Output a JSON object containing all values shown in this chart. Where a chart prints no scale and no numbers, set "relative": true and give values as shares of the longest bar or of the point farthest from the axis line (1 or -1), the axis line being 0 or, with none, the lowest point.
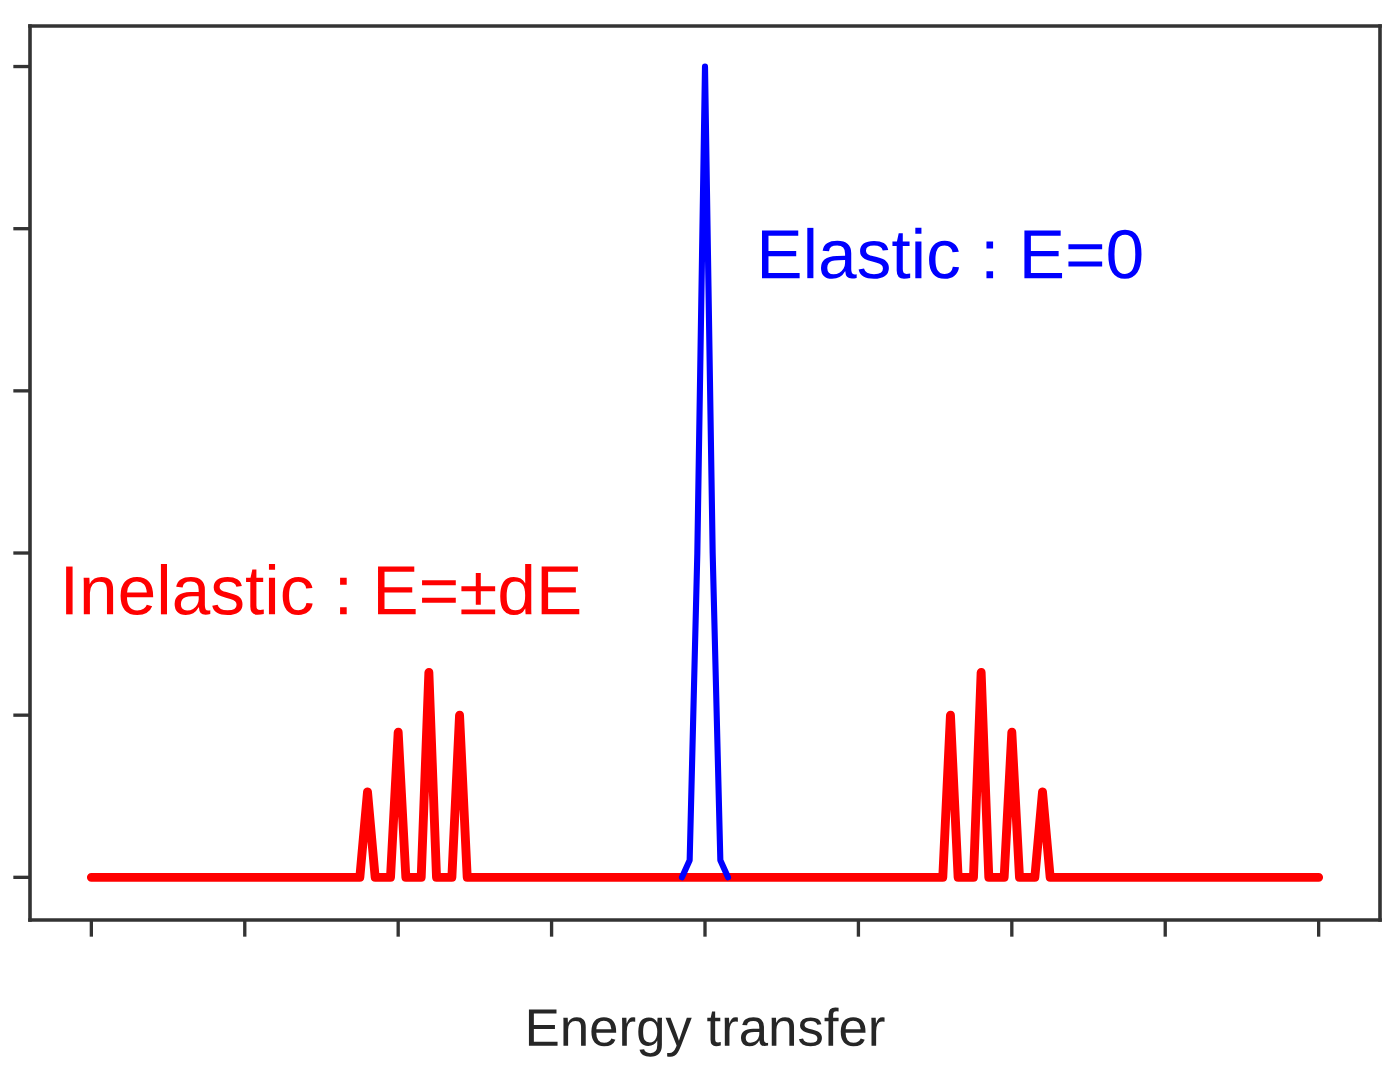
{
  "chart_data": {
    "type": "line",
    "relative": true,
    "xlabel": "Energy transfer",
    "legend": false,
    "grid": false,
    "categories": [
      null,
      null,
      null,
      null,
      null,
      null,
      null,
      null,
      null,
      null,
      null,
      null,
      null,
      null,
      null,
      null,
      null,
      null,
      null,
      null,
      null,
      null,
      null,
      null,
      null,
      null,
      null,
      null,
      null,
      null,
      null,
      null,
      null,
      null,
      null,
      null,
      null,
      null,
      null,
      null,
      null,
      null,
      null,
      null,
      null,
      null,
      null,
      null,
      null,
      null,
      null,
      null,
      null,
      null,
      null,
      null,
      null,
      null,
      null,
      null,
      null,
      null,
      null,
      null,
      null,
      null,
      null,
      null,
      null,
      null,
      null,
      null,
      null,
      null,
      null,
      null,
      null,
      null,
      null,
      null,
      null,
      null,
      null,
      null,
      null,
      null,
      null,
      null,
      null,
      null,
      null,
      null,
      null,
      null,
      null,
      null,
      null,
      null,
      null,
      null,
      null,
      null,
      null,
      null,
      null,
      null,
      null,
      null,
      null,
      null,
      null,
      null,
      null,
      null,
      null,
      null,
      null,
      null,
      null,
      null,
      null,
      null,
      null,
      null,
      null,
      null,
      null,
      null,
      null,
      null,
      null,
      null,
      null,
      null,
      null,
      null,
      null,
      null,
      null,
      null,
      null,
      null,
      null,
      null,
      null,
      null,
      null,
      null,
      null,
      null,
      null,
      null,
      null,
      null,
      null,
      null,
      null,
      null,
      null,
      null,
      null
    ],
    "series": [
      {
        "name": "Inelastic : E=±dE",
        "color": "#ff0000",
        "values": [
          0.05,
          0.05,
          0.05,
          0.05,
          0.05,
          0.05,
          0.05,
          0.05,
          0.05,
          0.05,
          0.05,
          0.05,
          0.05,
          0.05,
          0.05,
          0.05,
          0.05,
          0.05,
          0.05,
          0.05,
          0.05,
          0.05,
          0.05,
          0.05,
          0.05,
          0.05,
          0.05,
          0.05,
          0.05,
          0.05,
          0.05,
          0.05,
          0.05,
          0.05,
          0.05,
          0.05,
          0.15,
          0.05,
          0.05,
          0.05,
          0.22,
          0.05,
          0.05,
          0.05,
          0.29,
          0.05,
          0.05,
          0.05,
          0.24,
          0.05,
          0.05,
          0.05,
          0.05,
          0.05,
          0.05,
          0.05,
          0.05,
          0.05,
          0.05,
          0.05,
          0.05,
          0.05,
          0.05,
          0.05,
          0.05,
          0.05,
          0.05,
          0.05,
          0.05,
          0.05,
          0.05,
          0.05,
          0.05,
          0.05,
          0.05,
          0.05,
          0.05,
          0.05,
          0.05,
          0.05,
          0.05,
          0.05,
          0.05,
          0.05,
          0.05,
          0.05,
          0.05,
          0.05,
          0.05,
          0.05,
          0.05,
          0.05,
          0.05,
          0.05,
          0.05,
          0.05,
          0.05,
          0.05,
          0.05,
          0.05,
          0.05,
          0.05,
          0.05,
          0.05,
          0.05,
          0.05,
          0.05,
          0.05,
          0.05,
          0.05,
          0.05,
          0.05,
          0.24,
          0.05,
          0.05,
          0.05,
          0.29,
          0.05,
          0.05,
          0.05,
          0.22,
          0.05,
          0.05,
          0.05,
          0.15,
          0.05,
          0.05,
          0.05,
          0.05,
          0.05,
          0.05,
          0.05,
          0.05,
          0.05,
          0.05,
          0.05,
          0.05,
          0.05,
          0.05,
          0.05,
          0.05,
          0.05,
          0.05,
          0.05,
          0.05,
          0.05,
          0.05,
          0.05,
          0.05,
          0.05,
          0.05,
          0.05,
          0.05,
          0.05,
          0.05,
          0.05,
          0.05,
          0.05,
          0.05,
          0.05,
          0.05
        ]
      },
      {
        "name": "Elastic : E=0",
        "color": "#0000ff",
        "values": [
          null,
          null,
          null,
          null,
          null,
          null,
          null,
          null,
          null,
          null,
          null,
          null,
          null,
          null,
          null,
          null,
          null,
          null,
          null,
          null,
          null,
          null,
          null,
          null,
          null,
          null,
          null,
          null,
          null,
          null,
          null,
          null,
          null,
          null,
          null,
          null,
          null,
          null,
          null,
          null,
          null,
          null,
          null,
          null,
          null,
          null,
          null,
          null,
          null,
          null,
          null,
          null,
          null,
          null,
          null,
          null,
          null,
          null,
          null,
          null,
          null,
          null,
          null,
          null,
          null,
          null,
          null,
          null,
          null,
          null,
          null,
          null,
          null,
          null,
          null,
          null,
          null,
          0.05,
          0.07,
          0.43,
          1,
          0.43,
          0.07,
          0.05,
          null,
          null,
          null,
          null,
          null,
          null,
          null,
          null,
          null,
          null,
          null,
          null,
          null,
          null,
          null,
          null,
          null,
          null,
          null,
          null,
          null,
          null,
          null,
          null,
          null,
          null,
          null,
          null,
          null,
          null,
          null,
          null,
          null,
          null,
          null,
          null,
          null,
          null,
          null,
          null,
          null,
          null,
          null,
          null,
          null,
          null,
          null,
          null,
          null,
          null,
          null,
          null,
          null,
          null,
          null,
          null,
          null,
          null,
          null,
          null,
          null,
          null,
          null,
          null,
          null,
          null,
          null,
          null,
          null,
          null,
          null,
          null,
          null,
          null,
          null,
          null,
          null
        ]
      }
    ]
  }
}
